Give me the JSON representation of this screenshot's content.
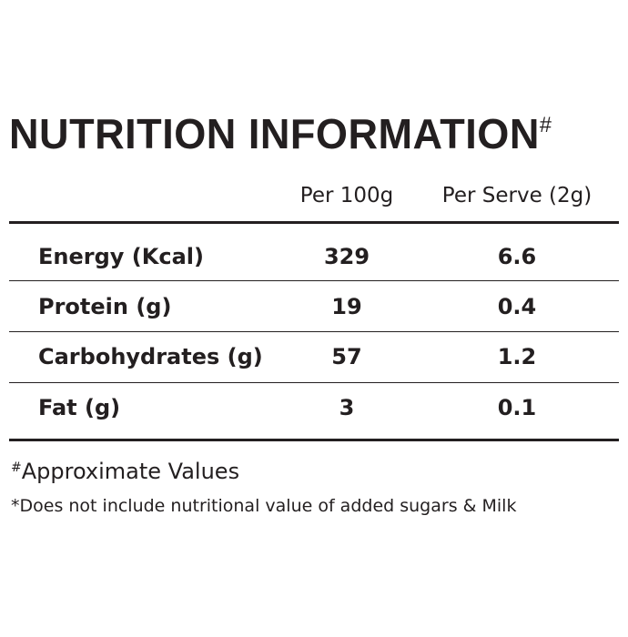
{
  "header": {
    "title": "NUTRITION INFORMATION",
    "title_mark": "#"
  },
  "table": {
    "columns": [
      "Per 100g",
      "Per Serve (2g)"
    ],
    "rows": [
      [
        "Energy (Kcal)",
        "329",
        "6.6"
      ],
      [
        "Protein (g)",
        "19",
        "0.4"
      ],
      [
        "Carbohydrates (g)",
        "57",
        "1.2"
      ],
      [
        "Fat (g)",
        "3",
        "0.1"
      ]
    ]
  },
  "footnotes": {
    "approx_mark": "#",
    "approx": "Approximate Values",
    "note": "*Does not include nutritional value of added sugars & Milk"
  }
}
